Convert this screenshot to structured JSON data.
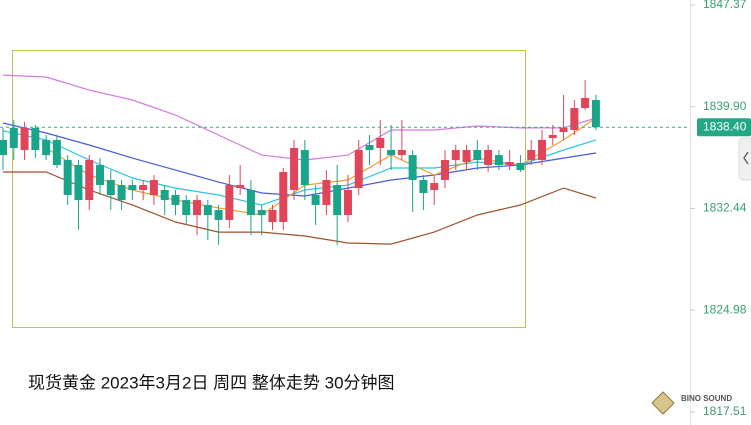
{
  "chart_data": {
    "type": "candlestick",
    "title": "现货黄金 2023年3月2日 周四 整体走势 30分钟图",
    "logo_text": "BINO SOUND",
    "ylim": [
      1817.51,
      1847.37
    ],
    "yticks": [
      1847.37,
      {
        "value": 1839.9,
        "label": "1839.90"
      },
      1832.44,
      1824.98,
      1817.51
    ],
    "last_price": {
      "value": 1838.4,
      "label": "1838.40"
    },
    "up_color": "#e0455a",
    "down_color": "#1aa58a",
    "series": {
      "open": [
        1837.47,
        1838.35,
        1836.73,
        1838.35,
        1837.47,
        1837.47,
        1836.0,
        1835.63,
        1833.06,
        1835.63,
        1834.53,
        1834.16,
        1834.16,
        1833.8,
        1833.43,
        1833.8,
        1833.43,
        1833.06,
        1831.96,
        1832.7,
        1832.33,
        1831.6,
        1833.94,
        1833.8,
        1832.33,
        1831.45,
        1831.45,
        1833.8,
        1836.73,
        1833.43,
        1832.7,
        1834.16,
        1831.96,
        1833.94,
        1837.1,
        1836.88,
        1836.73,
        1836.36,
        1836.36,
        1834.53,
        1833.8,
        1834.53,
        1836.0,
        1835.85,
        1836.73,
        1835.63,
        1836.36,
        1835.63,
        1835.78,
        1836.0,
        1836.0,
        1837.61,
        1838.05,
        1838.2,
        1839.81,
        1840.4
      ],
      "high": [
        1838.35,
        1838.93,
        1838.79,
        1838.57,
        1837.83,
        1837.83,
        1836.36,
        1836.0,
        1836.36,
        1836.14,
        1835.26,
        1834.53,
        1834.53,
        1834.53,
        1834.9,
        1834.16,
        1833.8,
        1833.43,
        1833.43,
        1833.06,
        1832.7,
        1834.9,
        1835.63,
        1834.53,
        1832.7,
        1832.7,
        1835.41,
        1837.47,
        1837.47,
        1834.16,
        1835.26,
        1835.63,
        1834.9,
        1837.47,
        1837.83,
        1838.93,
        1838.57,
        1838.93,
        1836.73,
        1834.9,
        1834.9,
        1836.73,
        1837.1,
        1837.1,
        1837.47,
        1837.1,
        1836.73,
        1836.73,
        1836.36,
        1837.47,
        1838.2,
        1838.57,
        1840.77,
        1840.4,
        1841.87,
        1840.77
      ],
      "low": [
        1835.26,
        1836.0,
        1836.0,
        1836.14,
        1836.0,
        1835.41,
        1832.7,
        1830.86,
        1832.33,
        1833.43,
        1832.33,
        1832.33,
        1833.06,
        1833.06,
        1832.7,
        1831.96,
        1831.96,
        1831.23,
        1830.49,
        1830.13,
        1829.76,
        1831.01,
        1833.43,
        1830.49,
        1830.49,
        1830.86,
        1830.86,
        1833.06,
        1833.06,
        1831.23,
        1831.96,
        1829.76,
        1831.45,
        1833.43,
        1835.63,
        1835.63,
        1835.26,
        1836.0,
        1832.18,
        1832.33,
        1832.7,
        1833.94,
        1835.26,
        1835.26,
        1835.26,
        1835.12,
        1835.26,
        1835.26,
        1835.12,
        1835.63,
        1835.63,
        1837.1,
        1837.47,
        1837.83,
        1839.67,
        1838.2
      ],
      "close": [
        1836.36,
        1836.88,
        1838.35,
        1836.73,
        1836.36,
        1835.63,
        1833.43,
        1833.06,
        1836.0,
        1834.16,
        1833.43,
        1833.06,
        1833.8,
        1834.16,
        1834.53,
        1833.06,
        1832.7,
        1831.96,
        1833.06,
        1831.96,
        1831.6,
        1834.16,
        1834.16,
        1831.96,
        1831.96,
        1832.33,
        1835.12,
        1836.88,
        1834.16,
        1832.7,
        1834.53,
        1831.96,
        1833.8,
        1836.73,
        1836.73,
        1837.61,
        1836.36,
        1836.73,
        1834.53,
        1833.58,
        1834.31,
        1836.0,
        1836.73,
        1836.73,
        1836.0,
        1836.73,
        1835.63,
        1835.85,
        1835.26,
        1836.73,
        1837.47,
        1837.83,
        1838.35,
        1839.81,
        1840.55,
        1838.4
      ]
    },
    "lines": [
      {
        "color": "#d47ae0",
        "x": [
          0,
          4,
          8,
          12,
          16,
          20,
          24,
          28,
          32,
          36,
          40,
          44,
          48,
          52,
          55
        ],
        "values": [
          1842.23,
          1842.09,
          1841.13,
          1840.4,
          1839.3,
          1837.83,
          1836.36,
          1836.0,
          1836.36,
          1838.2,
          1838.2,
          1838.49,
          1838.35,
          1838.35,
          1839.08
        ]
      },
      {
        "color": "#a0522d",
        "x": [
          0,
          4,
          8,
          12,
          16,
          20,
          24,
          28,
          32,
          36,
          40,
          44,
          48,
          52,
          55
        ],
        "values": [
          1835.12,
          1835.12,
          1833.8,
          1832.7,
          1831.45,
          1830.71,
          1830.71,
          1830.42,
          1829.91,
          1829.83,
          1830.71,
          1831.96,
          1832.7,
          1833.94,
          1833.21
        ]
      },
      {
        "color": "#4b5bd6",
        "x": [
          0,
          4,
          8,
          12,
          16,
          20,
          24,
          28,
          32,
          36,
          40,
          44,
          48,
          52,
          55
        ],
        "values": [
          1838.71,
          1837.98,
          1837.1,
          1836.14,
          1835.26,
          1834.38,
          1833.58,
          1833.36,
          1833.94,
          1834.53,
          1834.9,
          1835.41,
          1835.63,
          1836.14,
          1836.51
        ]
      },
      {
        "color": "#2ec4e0",
        "x": [
          0,
          4,
          8,
          12,
          16,
          20,
          24,
          28,
          32,
          36,
          40,
          44,
          48,
          52,
          55
        ],
        "values": [
          1838.13,
          1837.47,
          1836.0,
          1834.68,
          1833.94,
          1833.43,
          1832.7,
          1833.8,
          1834.16,
          1835.41,
          1835.41,
          1835.85,
          1835.63,
          1836.73,
          1837.47
        ]
      },
      {
        "color": "#f0a030",
        "x": [
          4,
          8,
          12,
          16,
          20,
          24,
          28,
          32,
          36,
          40,
          44,
          48,
          52,
          55
        ],
        "values": [
          1836.88,
          1834.9,
          1833.8,
          1833.06,
          1832.48,
          1831.96,
          1834.16,
          1834.53,
          1836.36,
          1834.9,
          1836.14,
          1835.63,
          1837.47,
          1839.08
        ]
      }
    ]
  }
}
